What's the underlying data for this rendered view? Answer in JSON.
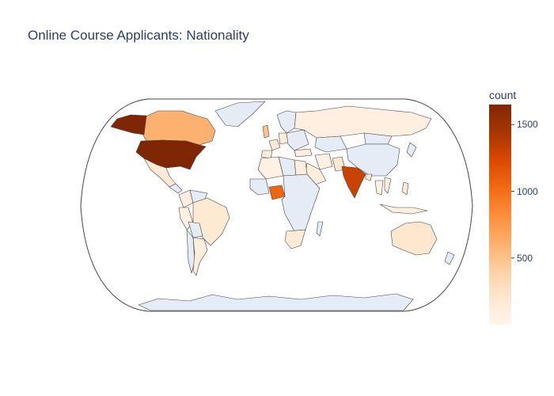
{
  "title": "Online Course Applicants: Nationality",
  "colorbar": {
    "title": "count",
    "min": 0,
    "max": 1650,
    "ticks": [
      500,
      1000,
      1500
    ],
    "tick_labels": [
      "500",
      "1000",
      "1500"
    ],
    "colorscale": [
      "#fff5eb",
      "#fee6ce",
      "#fdd0a2",
      "#fdae6b",
      "#fd8d3c",
      "#f16913",
      "#d94801",
      "#a63603",
      "#7f2704"
    ]
  },
  "colors": {
    "no_data_land": "#e5ecf6",
    "border": "#444444",
    "title": "#2a3f5f"
  },
  "chart_data": {
    "type": "choropleth",
    "title": "Online Course Applicants: Nationality",
    "colorbar_title": "count",
    "projection": "natural earth",
    "countries": [
      {
        "name": "United States",
        "count": 1650
      },
      {
        "name": "Alaska (USA)",
        "count": 1650
      },
      {
        "name": "India",
        "count": 1300
      },
      {
        "name": "Nigeria",
        "count": 1050
      },
      {
        "name": "Canada",
        "count": 600
      },
      {
        "name": "United Kingdom",
        "count": 500
      },
      {
        "name": "Australia",
        "count": 200
      },
      {
        "name": "Brazil",
        "count": 170
      },
      {
        "name": "Mexico",
        "count": 150
      },
      {
        "name": "Russia",
        "count": 80
      },
      {
        "name": "France",
        "count": 160
      },
      {
        "name": "Germany",
        "count": 150
      },
      {
        "name": "Spain",
        "count": 120
      },
      {
        "name": "South Africa",
        "count": 140
      },
      {
        "name": "Egypt",
        "count": 100
      },
      {
        "name": "Saudi Arabia",
        "count": 90
      },
      {
        "name": "Pakistan",
        "count": 180
      },
      {
        "name": "Colombia",
        "count": 90
      },
      {
        "name": "Argentina",
        "count": 90
      },
      {
        "name": "Peru",
        "count": 70
      },
      {
        "name": "Philippines",
        "count": 120
      },
      {
        "name": "Indonesia",
        "count": 80
      },
      {
        "name": "Algeria",
        "count": 60
      },
      {
        "name": "Turkey",
        "count": 80
      },
      {
        "name": "Iran",
        "count": 70
      },
      {
        "name": "Bangladesh",
        "count": 140
      },
      {
        "name": "Thailand",
        "count": 60
      },
      {
        "name": "Vietnam",
        "count": 70
      },
      {
        "name": "Greenland",
        "count": null
      },
      {
        "name": "China",
        "count": null
      },
      {
        "name": "Kazakhstan",
        "count": null
      },
      {
        "name": "Mongolia",
        "count": null
      },
      {
        "name": "Central and Southern Africa",
        "count": null
      },
      {
        "name": "Libya",
        "count": null
      },
      {
        "name": "Antarctica",
        "count": null
      },
      {
        "name": "Scandinavia",
        "count": null
      },
      {
        "name": "Venezuela",
        "count": null
      },
      {
        "name": "Bolivia",
        "count": null
      },
      {
        "name": "Chile",
        "count": null
      }
    ]
  }
}
